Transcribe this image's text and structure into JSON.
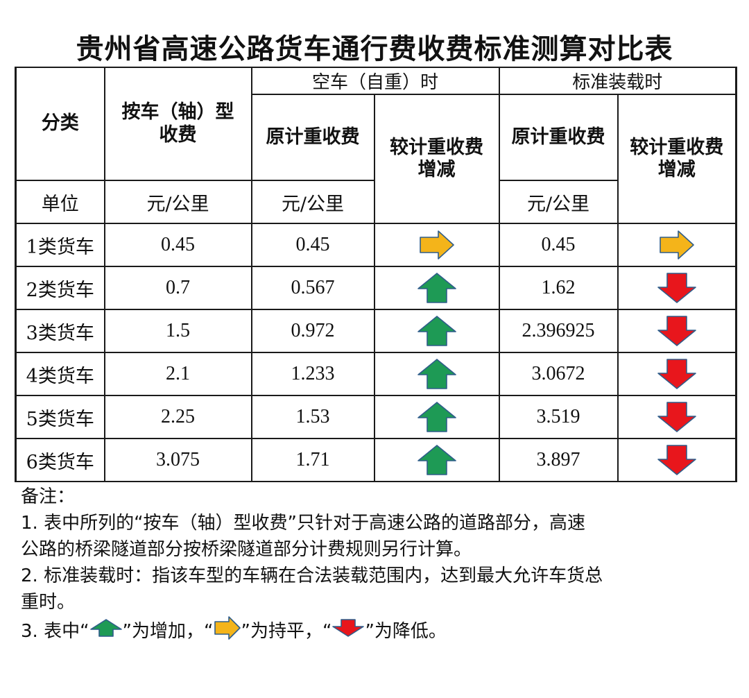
{
  "title": "贵州省高速公路货车通行费收费标准测算对比表",
  "table": {
    "headers": {
      "category": "分类",
      "axle_fee": "按车（轴）型收费",
      "empty_group": "空车（自重）时",
      "standard_group": "标准装载时",
      "original_fee": "原计重收费",
      "change": "较计重收费增减"
    },
    "unit_row": {
      "label": "单位",
      "axle_unit": "元/公里",
      "empty_unit": "元/公里",
      "standard_unit": "元/公里"
    },
    "rows": [
      {
        "category": "1类货车",
        "axle_fee": "0.45",
        "empty_original": "0.45",
        "empty_change": "flat",
        "standard_original": "0.45",
        "standard_change": "flat"
      },
      {
        "category": "2类货车",
        "axle_fee": "0.7",
        "empty_original": "0.567",
        "empty_change": "up",
        "standard_original": "1.62",
        "standard_change": "down"
      },
      {
        "category": "3类货车",
        "axle_fee": "1.5",
        "empty_original": "0.972",
        "empty_change": "up",
        "standard_original": "2.396925",
        "standard_change": "down"
      },
      {
        "category": "4类货车",
        "axle_fee": "2.1",
        "empty_original": "1.233",
        "empty_change": "up",
        "standard_original": "3.0672",
        "standard_change": "down"
      },
      {
        "category": "5类货车",
        "axle_fee": "2.25",
        "empty_original": "1.53",
        "empty_change": "up",
        "standard_original": "3.519",
        "standard_change": "down"
      },
      {
        "category": "6类货车",
        "axle_fee": "3.075",
        "empty_original": "1.71",
        "empty_change": "up",
        "standard_original": "3.897",
        "standard_change": "down"
      }
    ]
  },
  "arrow_colors": {
    "up": "#1e9a55",
    "flat": "#f4b41a",
    "down": "#e8161c",
    "outline": "#2f5d8a"
  },
  "notes": {
    "heading": "备注：",
    "line1": "1. 表中所列的“按车（轴）型收费”只针对于高速公路的道路部分，高速",
    "line2": "公路的桥梁隧道部分按桥梁隧道部分计费规则另行计算。",
    "line3": "2. 标准装载时：指该车型的车辆在合法装载范围内，达到最大允许车货总",
    "line4": "重时。",
    "legend_prefix": "3. 表中“",
    "legend_up_suffix": "”为增加，“",
    "legend_flat_suffix": "”为持平，“",
    "legend_down_suffix": "”为降低。"
  }
}
